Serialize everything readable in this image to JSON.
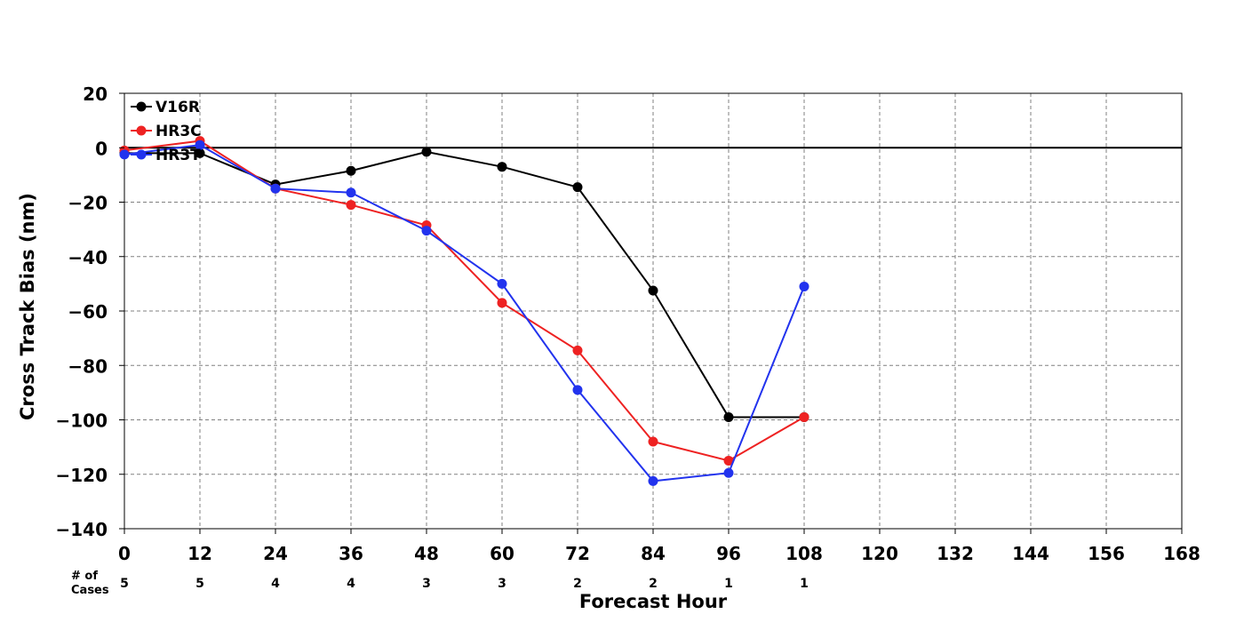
{
  "chart_data": {
    "type": "line",
    "xlabel": "Forecast Hour",
    "ylabel": "Cross Track Bias (nm)",
    "xlim": [
      0,
      168
    ],
    "ylim": [
      -140,
      20
    ],
    "xticks": [
      0,
      12,
      24,
      36,
      48,
      60,
      72,
      84,
      96,
      108,
      120,
      132,
      144,
      156,
      168
    ],
    "yticks": [
      20,
      0,
      -20,
      -40,
      -60,
      -80,
      -100,
      -120,
      -140
    ],
    "xtick_labels": [
      "0",
      "12",
      "24",
      "36",
      "48",
      "60",
      "72",
      "84",
      "96",
      "108",
      "120",
      "132",
      "144",
      "156",
      "168"
    ],
    "ytick_labels": [
      "20",
      "0",
      "−20",
      "−40",
      "−60",
      "−80",
      "−100",
      "−120",
      "−140"
    ],
    "grid": true,
    "legend_position": "top-left",
    "zero_line": true,
    "x": [
      0,
      12,
      24,
      36,
      48,
      60,
      72,
      84,
      96,
      108
    ],
    "series": [
      {
        "name": "V16R",
        "color": "#000000",
        "values": [
          -2,
          -2,
          -13.5,
          -8.5,
          -1.5,
          -7,
          -14.5,
          -52.5,
          -99,
          -99
        ]
      },
      {
        "name": "HR3C",
        "color": "#ee2222",
        "values": [
          -1,
          2.5,
          -15,
          -21,
          -28.5,
          -57,
          -74.5,
          -108,
          -115,
          -99
        ]
      },
      {
        "name": "HR3T",
        "color": "#2233ee",
        "values": [
          -2.5,
          1,
          -15,
          -16.5,
          -30.5,
          -50,
          -89,
          -122.5,
          -119.5,
          -51
        ]
      }
    ],
    "cases_label_line1": "# of",
    "cases_label_line2": "Cases",
    "cases": [
      {
        "hour": 0,
        "count": "5"
      },
      {
        "hour": 12,
        "count": "5"
      },
      {
        "hour": 24,
        "count": "4"
      },
      {
        "hour": 36,
        "count": "4"
      },
      {
        "hour": 48,
        "count": "3"
      },
      {
        "hour": 60,
        "count": "3"
      },
      {
        "hour": 72,
        "count": "2"
      },
      {
        "hour": 84,
        "count": "2"
      },
      {
        "hour": 96,
        "count": "1"
      },
      {
        "hour": 108,
        "count": "1"
      }
    ]
  }
}
